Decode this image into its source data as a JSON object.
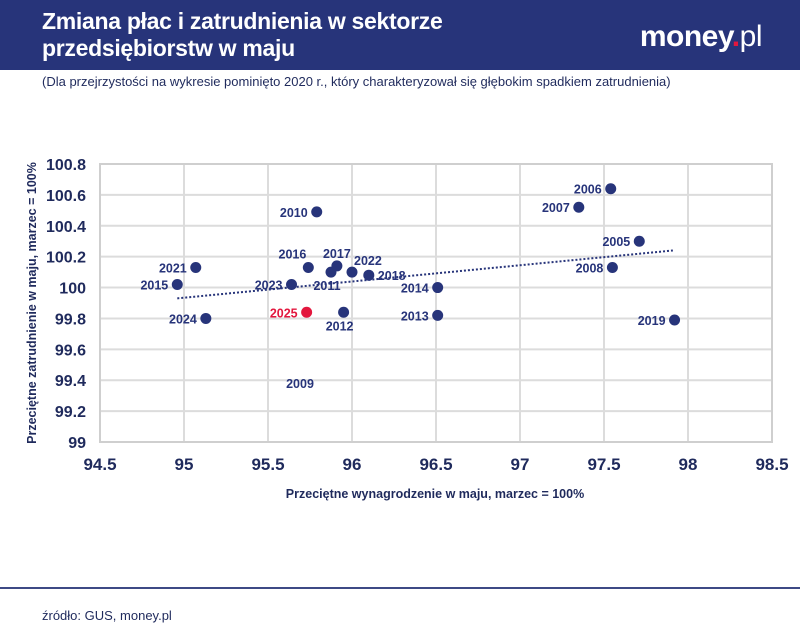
{
  "header": {
    "title": "Zmiana płac i zatrudnienia w sektorze przedsiębiorstw w maju",
    "logo": "money.pl",
    "subtitle": "(Dla przejrzystości na wykresie pominięto 2020 r., który charakteryzował się głębokim spadkiem zatrudnienia)"
  },
  "footer": {
    "source": "źródło: GUS, money.pl"
  },
  "colors": {
    "banner": "#27347a",
    "point": "#27347a",
    "highlight": "#e3173e",
    "logo_dot": "#e3173e"
  },
  "chart_data": {
    "type": "scatter",
    "xlabel": "Przeciętne wynagrodzenie w maju, marzec = 100%",
    "ylabel": "Przeciętne zatrudnienie w maju, marzec = 100%",
    "xlim": [
      94.5,
      98.5
    ],
    "ylim": [
      99,
      100.8
    ],
    "xticks": [
      "94.5",
      "95",
      "95.5",
      "96",
      "96.5",
      "97",
      "97.5",
      "98",
      "98.5"
    ],
    "yticks": [
      "99",
      "99.2",
      "99.4",
      "99.6",
      "99.8",
      "100",
      "100.2",
      "100.4",
      "100.6",
      "100.8"
    ],
    "grid": true,
    "points": [
      {
        "label": "2005",
        "x": 97.71,
        "y": 100.3,
        "label_pos": "left"
      },
      {
        "label": "2006",
        "x": 97.54,
        "y": 100.64,
        "label_pos": "left"
      },
      {
        "label": "2007",
        "x": 97.35,
        "y": 100.52,
        "label_pos": "left"
      },
      {
        "label": "2008",
        "x": 97.55,
        "y": 100.13,
        "label_pos": "left"
      },
      {
        "label": "2009",
        "x": null,
        "y": null,
        "label_pos": "none"
      },
      {
        "label": "2010",
        "x": 95.79,
        "y": 100.49,
        "label_pos": "left"
      },
      {
        "label": "2011",
        "x": 95.875,
        "y": 100.1,
        "label_pos": "below"
      },
      {
        "label": "2012",
        "x": 95.95,
        "y": 99.84,
        "label_pos": "below"
      },
      {
        "label": "2013",
        "x": 96.51,
        "y": 99.82,
        "label_pos": "left"
      },
      {
        "label": "2014",
        "x": 96.51,
        "y": 100.0,
        "label_pos": "left"
      },
      {
        "label": "2015",
        "x": 94.96,
        "y": 100.02,
        "label_pos": "left"
      },
      {
        "label": "2016",
        "x": 95.74,
        "y": 100.13,
        "label_pos": "above-left"
      },
      {
        "label": "2017",
        "x": 95.91,
        "y": 100.14,
        "label_pos": "above"
      },
      {
        "label": "2018",
        "x": 96.1,
        "y": 100.08,
        "label_pos": "right"
      },
      {
        "label": "2019",
        "x": 97.92,
        "y": 99.79,
        "label_pos": "left"
      },
      {
        "label": "2021",
        "x": 95.07,
        "y": 100.13,
        "label_pos": "left"
      },
      {
        "label": "2022",
        "x": 96.0,
        "y": 100.1,
        "label_pos": "above-right"
      },
      {
        "label": "2023",
        "x": 95.64,
        "y": 100.02,
        "label_pos": "left"
      },
      {
        "label": "2024",
        "x": 95.13,
        "y": 99.8,
        "label_pos": "left"
      },
      {
        "label": "2025",
        "x": 95.73,
        "y": 99.84,
        "label_pos": "left",
        "highlight": true
      }
    ],
    "trendline": {
      "style": "dotted",
      "x": [
        94.96,
        97.91
      ],
      "y": [
        99.93,
        100.24
      ]
    }
  }
}
